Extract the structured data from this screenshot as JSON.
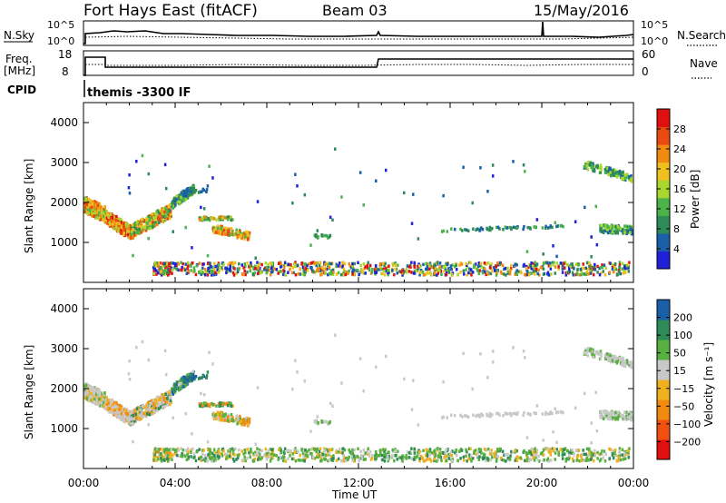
{
  "header": {
    "station": "Fort Hays East (fitACF)",
    "beam": "Beam 03",
    "date": "15/May/2016"
  },
  "noise_panel": {
    "left_label": "N.Sky",
    "right_label": "N.Search",
    "left_ticks": [
      "10^5",
      "10^0"
    ],
    "right_ticks": [
      "10^5",
      "10^0"
    ]
  },
  "freq_panel": {
    "left_label_line1": "Freq.",
    "left_label_line2": "[MHz]",
    "left_ticks": [
      "18",
      "8"
    ],
    "right_label": "Nave",
    "right_ticks": [
      "60",
      "0"
    ]
  },
  "cpid": {
    "label": "CPID",
    "text": "themis -3300 IF"
  },
  "x_axis": {
    "ticks": [
      "00:00",
      "04:00",
      "08:00",
      "12:00",
      "16:00",
      "20:00",
      "00:00"
    ],
    "label": "Time UT"
  },
  "colors": {
    "power": [
      "#2020d8",
      "#1a5fa8",
      "#2e8b57",
      "#4ab44a",
      "#a8d830",
      "#f0c020",
      "#f08a10",
      "#e84a10",
      "#e01010"
    ],
    "velocity": [
      "#e01010",
      "#f05010",
      "#f08a10",
      "#f0b020",
      "#c8c8c8",
      "#58b040",
      "#2e8b57",
      "#1a5fa8"
    ]
  },
  "chart_data": [
    {
      "type": "heatmap",
      "name": "power",
      "ylabel": "Slant Range [km]",
      "yticks": [
        "1000",
        "2000",
        "3000",
        "4000"
      ],
      "ylim": [
        0,
        4500
      ],
      "xlim_hours": [
        0,
        24
      ],
      "colorbar_label": "Power [dB]",
      "colorbar_ticks": [
        "4",
        "8",
        "12",
        "16",
        "20",
        "24",
        "28"
      ],
      "colorbar_range": [
        0,
        32
      ]
    },
    {
      "type": "heatmap",
      "name": "velocity",
      "ylabel": "Slant Range [km]",
      "yticks": [
        "1000",
        "2000",
        "3000",
        "4000"
      ],
      "ylim": [
        0,
        4500
      ],
      "xlim_hours": [
        0,
        24
      ],
      "colorbar_label": "Velocity [m s⁻¹]",
      "colorbar_ticks": [
        "200",
        "100",
        "50",
        "15",
        "−15",
        "−50",
        "−100",
        "−200"
      ]
    }
  ]
}
